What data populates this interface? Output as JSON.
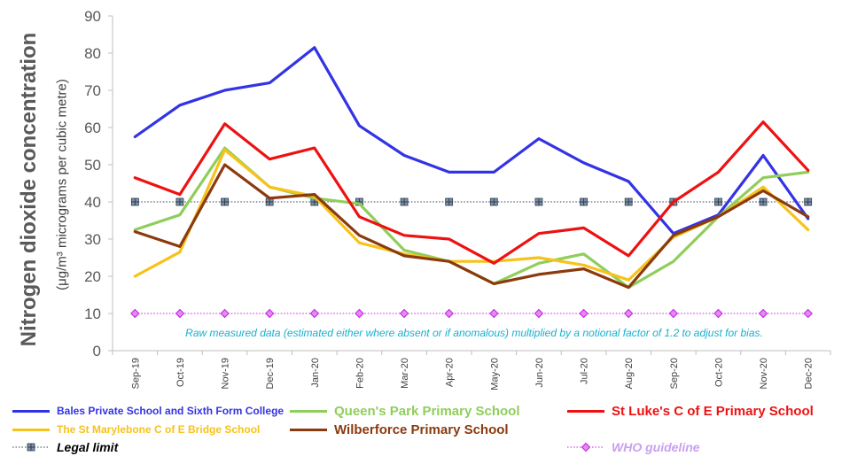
{
  "chart_data": {
    "type": "line",
    "ylabel": "Nitrogen dioxide concentration",
    "ylabel_sub": "(μg/m³ micrograms per cubic metre)",
    "ylim": [
      0,
      90
    ],
    "yticks": [
      0,
      10,
      20,
      30,
      40,
      50,
      60,
      70,
      80,
      90
    ],
    "categories": [
      "Sep-19",
      "Oct-19",
      "Nov-19",
      "Dec-19",
      "Jan-20",
      "Feb-20",
      "Mar-20",
      "Apr-20",
      "May-20",
      "Jun-20",
      "Jul-20",
      "Aug-20",
      "Sep-20",
      "Oct-20",
      "Nov-20",
      "Dec-20"
    ],
    "annotation": "Raw measured data (estimated either where absent or if anomalous) multiplied by a notional factor of 1.2 to adjust for bias.",
    "grid": false,
    "legend_position": "bottom",
    "series": [
      {
        "name": "Bales Private School and Sixth Form College",
        "color": "#3333e6",
        "values": [
          57.5,
          66,
          70,
          72,
          81.5,
          60.5,
          52.5,
          48,
          48,
          57,
          50.5,
          45.5,
          31.5,
          36.5,
          52.5,
          35.5
        ]
      },
      {
        "name": "Queen's Park Primary School",
        "color": "#8fce5a",
        "values": [
          32.5,
          36.5,
          54.5,
          44,
          41,
          39.5,
          27,
          24,
          18,
          23.5,
          26,
          17,
          24,
          36,
          46.5,
          48
        ]
      },
      {
        "name": "St Luke's C of E Primary School",
        "color": "#ee1111",
        "values": [
          46.5,
          42,
          61,
          51.5,
          54.5,
          36,
          31,
          30,
          23.5,
          31.5,
          33,
          25.5,
          40,
          48,
          61.5,
          48.5
        ]
      },
      {
        "name": "The St Marylebone C of E Bridge School",
        "color": "#f7c21a",
        "values": [
          20,
          26.5,
          54,
          44,
          41.5,
          29,
          26,
          24,
          24,
          25,
          23,
          19,
          30.5,
          36,
          44,
          32.5
        ]
      },
      {
        "name": "Wilberforce Primary School",
        "color": "#8b3a0e",
        "values": [
          32,
          28,
          50,
          41,
          42,
          31,
          25.5,
          24,
          18,
          20.5,
          22,
          17,
          31,
          36,
          43,
          36
        ]
      },
      {
        "name": "Legal limit",
        "color": "#2c3e50",
        "style": "dotted-marker",
        "values": [
          40,
          40,
          40,
          40,
          40,
          40,
          40,
          40,
          40,
          40,
          40,
          40,
          40,
          40,
          40,
          40
        ]
      },
      {
        "name": "WHO guideline",
        "color": "#c020e0",
        "style": "dotted-marker",
        "values": [
          10,
          10,
          10,
          10,
          10,
          10,
          10,
          10,
          10,
          10,
          10,
          10,
          10,
          10,
          10,
          10
        ]
      }
    ]
  }
}
